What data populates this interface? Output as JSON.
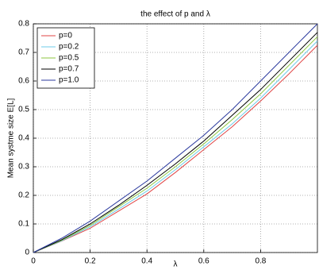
{
  "chart_data": {
    "type": "line",
    "title": "the effect of p and λ",
    "xlabel": "λ",
    "ylabel": "Mean systme size E[L]",
    "x": [
      0,
      0.1,
      0.2,
      0.3,
      0.4,
      0.5,
      0.6,
      0.7,
      0.8,
      0.9,
      1.0
    ],
    "series": [
      {
        "name": "p=0",
        "color": "#e04545",
        "values": [
          0,
          0.04,
          0.085,
          0.145,
          0.205,
          0.28,
          0.36,
          0.44,
          0.53,
          0.625,
          0.725
        ]
      },
      {
        "name": "p=0.2",
        "color": "#6ccbe8",
        "values": [
          0,
          0.041,
          0.09,
          0.152,
          0.215,
          0.29,
          0.37,
          0.45,
          0.54,
          0.64,
          0.74
        ]
      },
      {
        "name": "p=0.5",
        "color": "#8cc63f",
        "values": [
          0,
          0.043,
          0.095,
          0.16,
          0.225,
          0.3,
          0.38,
          0.465,
          0.555,
          0.655,
          0.755
        ]
      },
      {
        "name": "p=0.7",
        "color": "#000000",
        "values": [
          0,
          0.045,
          0.1,
          0.165,
          0.235,
          0.31,
          0.39,
          0.48,
          0.57,
          0.67,
          0.77
        ]
      },
      {
        "name": "p=1.0",
        "color": "#2b3a9e",
        "values": [
          0,
          0.05,
          0.11,
          0.18,
          0.25,
          0.33,
          0.41,
          0.5,
          0.6,
          0.7,
          0.8
        ]
      }
    ],
    "xlim": [
      0,
      1
    ],
    "xticks": [
      0,
      0.2,
      0.4,
      0.6,
      0.8
    ],
    "ylim": [
      0,
      0.8
    ],
    "yticks": [
      0,
      0.1,
      0.2,
      0.3,
      0.4,
      0.5,
      0.6,
      0.7,
      0.8
    ],
    "grid": true,
    "legend": "upper left"
  }
}
